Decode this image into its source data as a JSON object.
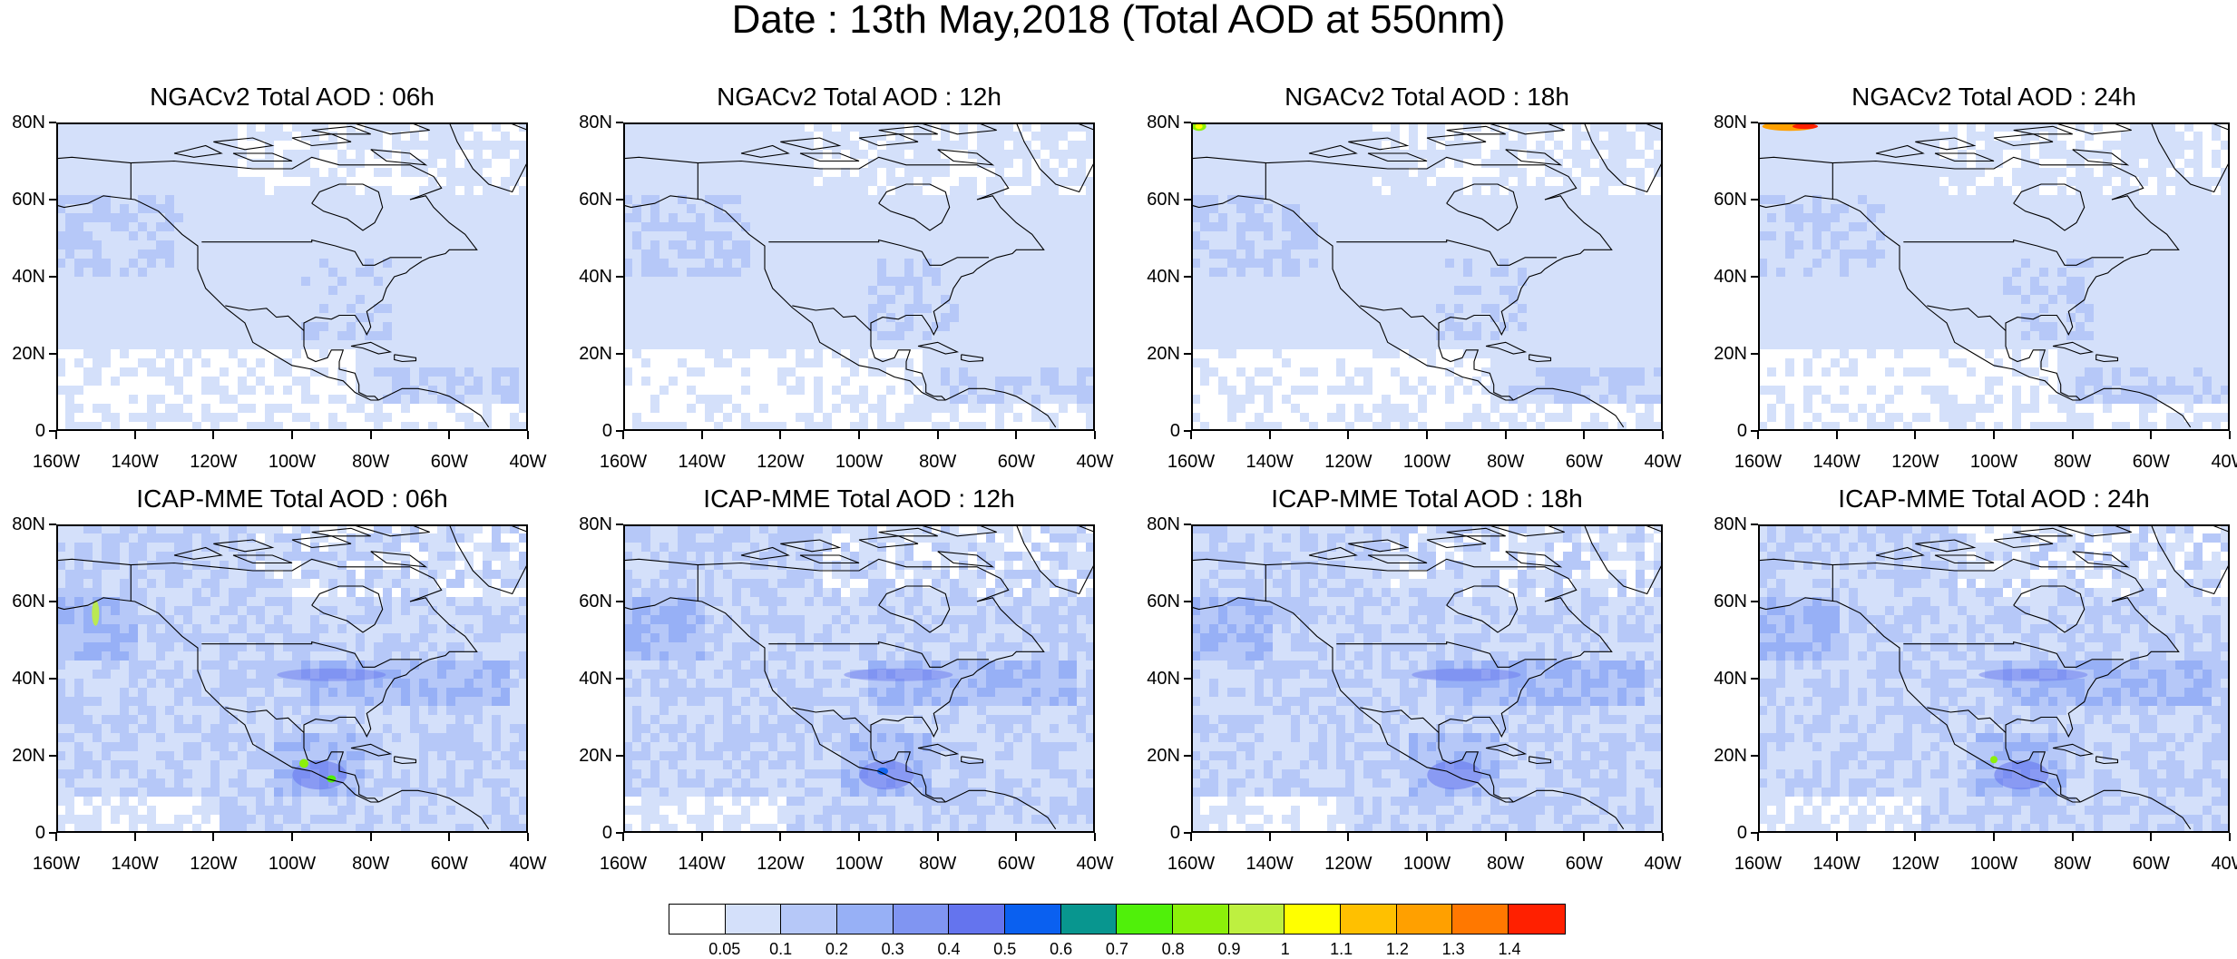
{
  "title": "Date : 13th May,2018 (Total AOD at 550nm)",
  "panels": [
    {
      "label": "NGACv2 Total AOD : 06h",
      "model": "ngac",
      "hour": "06"
    },
    {
      "label": "NGACv2 Total AOD : 12h",
      "model": "ngac",
      "hour": "12"
    },
    {
      "label": "NGACv2 Total AOD : 18h",
      "model": "ngac",
      "hour": "18"
    },
    {
      "label": "NGACv2 Total AOD : 24h",
      "model": "ngac",
      "hour": "24"
    },
    {
      "label": "ICAP-MME Total AOD : 06h",
      "model": "icap",
      "hour": "06"
    },
    {
      "label": "ICAP-MME Total AOD : 12h",
      "model": "icap",
      "hour": "12"
    },
    {
      "label": "ICAP-MME Total AOD : 18h",
      "model": "icap",
      "hour": "18"
    },
    {
      "label": "ICAP-MME Total AOD : 24h",
      "model": "icap",
      "hour": "24"
    }
  ],
  "axes": {
    "lat_labels": [
      "80N",
      "60N",
      "40N",
      "20N",
      "0"
    ],
    "lat_values": [
      80,
      60,
      40,
      20,
      0
    ],
    "lon_labels": [
      "160W",
      "140W",
      "120W",
      "100W",
      "80W",
      "60W",
      "40W"
    ],
    "lon_values": [
      -160,
      -140,
      -120,
      -100,
      -80,
      -60,
      -40
    ]
  },
  "colorbar": {
    "colors": [
      "#ffffff",
      "#d4e0fa",
      "#b6c8f8",
      "#97b0f6",
      "#8095f2",
      "#6474ee",
      "#0a60f0",
      "#08968f",
      "#50f00a",
      "#8cf00a",
      "#bef040",
      "#ffff00",
      "#ffc000",
      "#ffa000",
      "#ff7800",
      "#ff2000"
    ],
    "labels": [
      "0.05",
      "0.1",
      "0.2",
      "0.3",
      "0.4",
      "0.5",
      "0.6",
      "0.7",
      "0.8",
      "0.9",
      "1",
      "1.1",
      "1.2",
      "1.3",
      "1.4"
    ]
  },
  "colors": {
    "land_outline": "#000000",
    "background": "#ffffff"
  }
}
